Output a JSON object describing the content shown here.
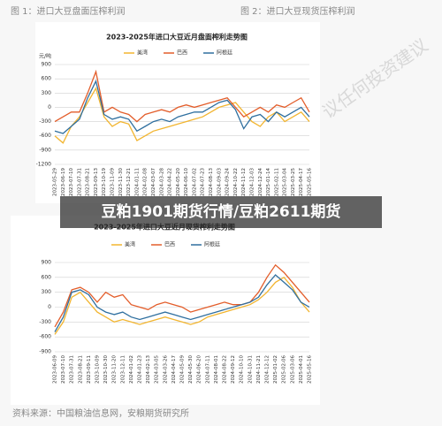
{
  "captions": [
    "图 1：进口大豆盘面压榨利润",
    "图 2：进口大豆现货压榨利润"
  ],
  "watermark": "议任何投资建议",
  "banner": "豆粕1901期货行情/豆粕2611期货",
  "source": "资料来源：中国粮油信息网，安粮期货研究所",
  "chart_data": [
    {
      "type": "line",
      "title": "2023-2025年进口大豆近月盘面榨利走势图",
      "y_label": "元/吨",
      "categories": [
        "2023-05-29",
        "2023-06-19",
        "2023-07-10",
        "2023-07-31",
        "2023-08-21",
        "2023-09-13",
        "2023-10-19",
        "2023-11-09",
        "2023-11-30",
        "2023-12-21",
        "2024-01-11",
        "2024-02-08",
        "2024-03-07",
        "2024-03-28",
        "2024-04-22",
        "2024-05-20",
        "2024-06-10",
        "2024-07-02",
        "2024-07-23",
        "2024-08-13",
        "2024-09-03",
        "2024-09-24",
        "2024-10-22",
        "2024-11-12",
        "2024-12-03",
        "2024-12-24",
        "2025-01-14",
        "2025-02-11",
        "2025-03-04",
        "2025-03-25",
        "2025-04-17",
        "2025-05-16"
      ],
      "series": [
        {
          "name": "美湾",
          "color": "#f2b530",
          "values": [
            -600,
            -750,
            -400,
            -200,
            100,
            400,
            -200,
            -400,
            -300,
            -350,
            -700,
            -600,
            -500,
            -450,
            -400,
            -350,
            -300,
            -250,
            -200,
            -100,
            0,
            50,
            100,
            -100,
            -300,
            -400,
            -200,
            -100,
            -300,
            -200,
            -100,
            -300
          ]
        },
        {
          "name": "巴西",
          "color": "#e35d2a",
          "values": [
            -300,
            -200,
            -100,
            -100,
            300,
            750,
            -100,
            0,
            -100,
            -150,
            -300,
            -150,
            -100,
            -50,
            -100,
            0,
            50,
            0,
            50,
            100,
            150,
            200,
            0,
            -200,
            -100,
            0,
            -100,
            50,
            0,
            100,
            200,
            -100
          ]
        },
        {
          "name": "阿根廷",
          "color": "#2f6f9f",
          "values": [
            -500,
            -550,
            -400,
            -250,
            200,
            550,
            -150,
            -250,
            -200,
            -250,
            -500,
            -400,
            -300,
            -250,
            -300,
            -200,
            -150,
            -100,
            -100,
            0,
            100,
            150,
            -50,
            -450,
            -200,
            -150,
            -300,
            -100,
            -200,
            -100,
            0,
            -200
          ]
        }
      ],
      "ylim": [
        -1200,
        900
      ],
      "yticks": [
        900,
        600,
        300,
        0,
        -300,
        -600,
        -900,
        -1200
      ],
      "grid": true
    },
    {
      "type": "line",
      "title": "2023-2025年进口大豆近月现货榨利走势图",
      "categories": [
        "2023-06-09",
        "2023-07-10",
        "2023-07-31",
        "2023-08-21",
        "2023-09-11",
        "2023-10-09",
        "2023-10-30",
        "2023-11-20",
        "2023-12-11",
        "2024-01-02",
        "2024-01-23",
        "2024-02-13",
        "2024-03-05",
        "2024-03-26",
        "2024-04-17",
        "2024-05-09",
        "2024-05-30",
        "2024-06-20",
        "2024-07-11",
        "2024-08-01",
        "2024-08-22",
        "2024-09-12",
        "2024-10-10",
        "2024-10-31",
        "2024-11-21",
        "2024-12-12",
        "2025-01-02",
        "2025-02-06",
        "2025-03-06",
        "2025-04-01",
        "2025-05-16"
      ],
      "series": [
        {
          "name": "美湾",
          "color": "#f2b530",
          "values": [
            -550,
            -300,
            200,
            300,
            100,
            -100,
            -200,
            -300,
            -250,
            -300,
            -350,
            -300,
            -250,
            -200,
            -250,
            -300,
            -350,
            -300,
            -200,
            -150,
            -100,
            -50,
            0,
            50,
            150,
            300,
            500,
            600,
            400,
            100,
            -100
          ]
        },
        {
          "name": "巴西",
          "color": "#e35d2a",
          "values": [
            -400,
            -100,
            350,
            400,
            300,
            100,
            300,
            200,
            250,
            50,
            0,
            -50,
            50,
            100,
            50,
            0,
            -100,
            -50,
            0,
            50,
            100,
            50,
            50,
            100,
            300,
            600,
            850,
            700,
            500,
            300,
            100
          ]
        },
        {
          "name": "阿根廷",
          "color": "#2f6f9f",
          "values": [
            -500,
            -200,
            300,
            350,
            250,
            0,
            -100,
            -150,
            -100,
            -200,
            -250,
            -200,
            -150,
            -100,
            -150,
            -200,
            -250,
            -200,
            -150,
            -100,
            -50,
            0,
            50,
            100,
            200,
            450,
            650,
            500,
            350,
            100,
            0
          ]
        }
      ],
      "ylim": [
        -900,
        900
      ],
      "yticks": [
        900,
        600,
        300,
        0,
        -300,
        -600,
        -900
      ],
      "grid": true
    }
  ]
}
